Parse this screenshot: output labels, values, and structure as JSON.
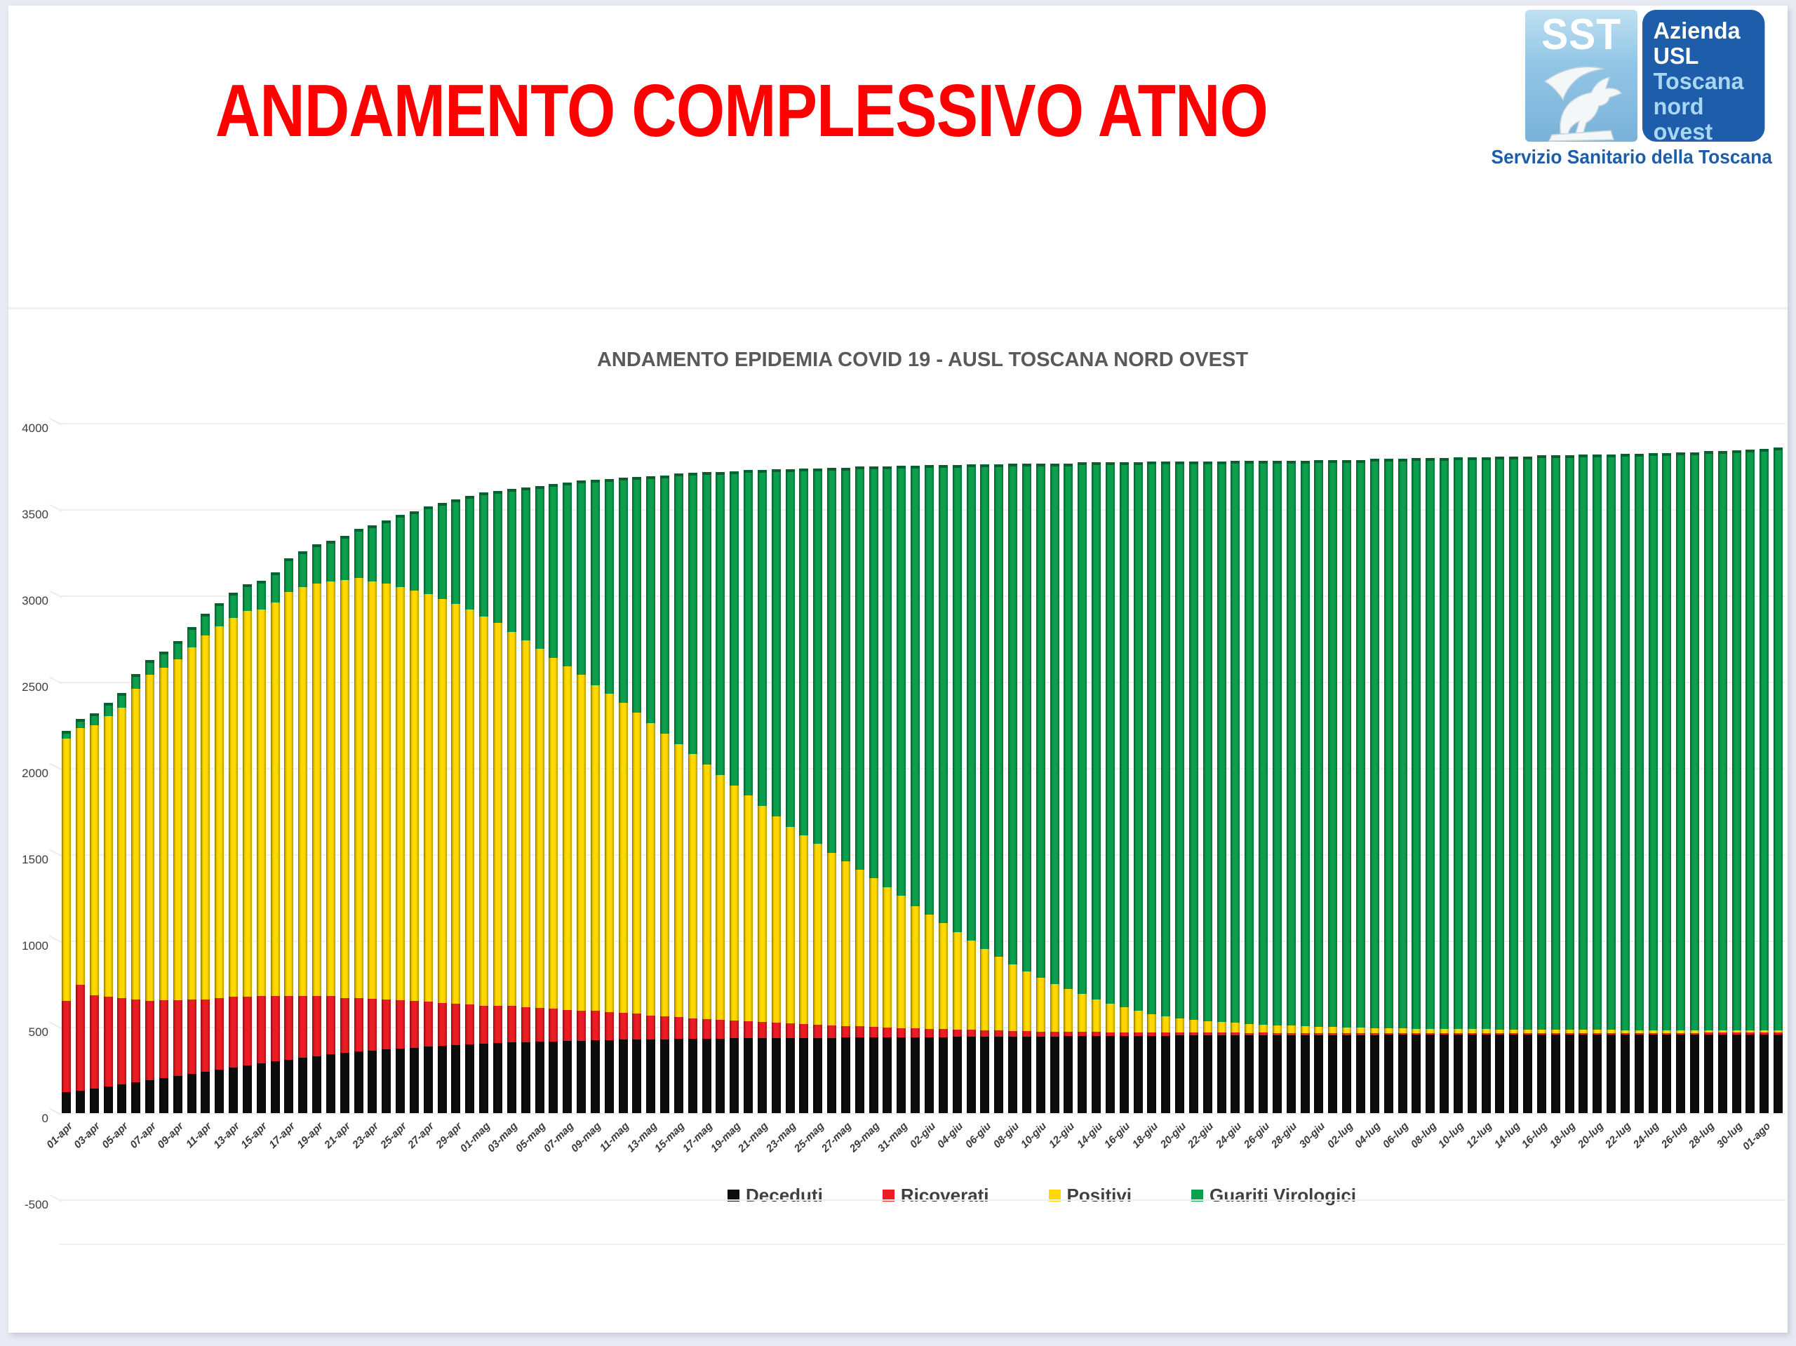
{
  "page": {
    "title": "ANDAMENTO COMPLESSIVO ATNO",
    "title_color": "#fe0000"
  },
  "logo": {
    "sst": "SST",
    "line1": "Azienda",
    "line2": "USL",
    "line3": "Toscana",
    "line4": "nord ovest",
    "caption": "Servizio Sanitario della Toscana",
    "dark_blue": "#1d5da9",
    "light_blue": "#a9d6f2"
  },
  "chart_data": {
    "type": "bar",
    "stacked": true,
    "title": "ANDAMENTO EPIDEMIA COVID 19 - AUSL TOSCANA NORD OVEST",
    "xlabel": "",
    "ylabel": "",
    "ylim": [
      -500,
      4000
    ],
    "yticks": [
      4000,
      3500,
      3000,
      2500,
      2000,
      1500,
      1000,
      500,
      0,
      -500
    ],
    "grid": true,
    "legend_position": "bottom",
    "x_label_every": 2,
    "x": [
      "01-apr",
      "02-apr",
      "03-apr",
      "04-apr",
      "05-apr",
      "06-apr",
      "07-apr",
      "08-apr",
      "09-apr",
      "10-apr",
      "11-apr",
      "12-apr",
      "13-apr",
      "14-apr",
      "15-apr",
      "16-apr",
      "17-apr",
      "18-apr",
      "19-apr",
      "20-apr",
      "21-apr",
      "22-apr",
      "23-apr",
      "24-apr",
      "25-apr",
      "26-apr",
      "27-apr",
      "28-apr",
      "29-apr",
      "30-apr",
      "01-mag",
      "02-mag",
      "03-mag",
      "04-mag",
      "05-mag",
      "06-mag",
      "07-mag",
      "08-mag",
      "09-mag",
      "10-mag",
      "11-mag",
      "12-mag",
      "13-mag",
      "14-mag",
      "15-mag",
      "16-mag",
      "17-mag",
      "18-mag",
      "19-mag",
      "20-mag",
      "21-mag",
      "22-mag",
      "23-mag",
      "24-mag",
      "25-mag",
      "26-mag",
      "27-mag",
      "28-mag",
      "29-mag",
      "30-mag",
      "31-mag",
      "01-giu",
      "02-giu",
      "03-giu",
      "04-giu",
      "05-giu",
      "06-giu",
      "07-giu",
      "08-giu",
      "09-giu",
      "10-giu",
      "11-giu",
      "12-giu",
      "13-giu",
      "14-giu",
      "15-giu",
      "16-giu",
      "17-giu",
      "18-giu",
      "19-giu",
      "20-giu",
      "21-giu",
      "22-giu",
      "23-giu",
      "24-giu",
      "25-giu",
      "26-giu",
      "27-giu",
      "28-giu",
      "29-giu",
      "30-giu",
      "01-lug",
      "02-lug",
      "03-lug",
      "04-lug",
      "05-lug",
      "06-lug",
      "07-lug",
      "08-lug",
      "09-lug",
      "10-lug",
      "11-lug",
      "12-lug",
      "13-lug",
      "14-lug",
      "15-lug",
      "16-lug",
      "17-lug",
      "18-lug",
      "19-lug",
      "20-lug",
      "21-lug",
      "22-lug",
      "23-lug",
      "24-lug",
      "25-lug",
      "26-lug",
      "27-lug",
      "28-lug",
      "29-lug",
      "30-lug",
      "31-lug",
      "01-ago",
      "02-ago"
    ],
    "series": [
      {
        "name": "Deceduti",
        "color": "#0d0d0d",
        "values": [
          120,
          132,
          144,
          156,
          168,
          180,
          192,
          204,
          216,
          228,
          240,
          252,
          264,
          276,
          288,
          300,
          310,
          320,
          330,
          340,
          348,
          356,
          362,
          368,
          374,
          380,
          386,
          390,
          395,
          400,
          404,
          407,
          410,
          412,
          414,
          416,
          418,
          420,
          422,
          424,
          425,
          426,
          427,
          428,
          429,
          430,
          431,
          432,
          433,
          434,
          435,
          435,
          436,
          436,
          437,
          437,
          438,
          438,
          439,
          439,
          439,
          440,
          441,
          441,
          442,
          442,
          443,
          443,
          444,
          444,
          445,
          445,
          446,
          446,
          447,
          447,
          448,
          448,
          449,
          449,
          450,
          450,
          450,
          451,
          451,
          451,
          452,
          452,
          452,
          452,
          452,
          453,
          453,
          453,
          453,
          454,
          454,
          454,
          454,
          454,
          455,
          455,
          455,
          455,
          455,
          455,
          455,
          456,
          456,
          456,
          456,
          456,
          456,
          456,
          456,
          456,
          456,
          456,
          456,
          456,
          456,
          456,
          456,
          456
        ]
      },
      {
        "name": "Ricoverati",
        "color": "#ec1c24",
        "values": [
          530,
          610,
          540,
          520,
          500,
          480,
          460,
          450,
          440,
          430,
          420,
          415,
          410,
          400,
          390,
          380,
          370,
          360,
          350,
          340,
          320,
          310,
          300,
          290,
          280,
          270,
          260,
          250,
          240,
          230,
          220,
          215,
          210,
          200,
          195,
          190,
          180,
          175,
          170,
          160,
          155,
          150,
          140,
          135,
          130,
          120,
          115,
          110,
          105,
          100,
          95,
          90,
          85,
          80,
          75,
          70,
          68,
          65,
          60,
          58,
          55,
          50,
          48,
          45,
          42,
          40,
          38,
          35,
          33,
          30,
          28,
          26,
          25,
          24,
          23,
          22,
          21,
          20,
          19,
          18,
          17,
          16,
          16,
          15,
          15,
          14,
          14,
          13,
          13,
          12,
          12,
          12,
          11,
          11,
          10,
          10,
          10,
          9,
          9,
          9,
          8,
          8,
          8,
          8,
          8,
          8,
          8,
          8,
          8,
          8,
          8,
          8,
          8,
          8,
          9,
          9,
          9,
          9,
          10,
          10,
          10,
          10,
          10,
          10
        ]
      },
      {
        "name": "Positivi",
        "color": "#ffd800",
        "values": [
          1520,
          1488,
          1566,
          1624,
          1682,
          1800,
          1888,
          1926,
          1974,
          2042,
          2110,
          2153,
          2196,
          2234,
          2242,
          2280,
          2340,
          2370,
          2390,
          2400,
          2422,
          2434,
          2418,
          2412,
          2396,
          2380,
          2364,
          2340,
          2315,
          2290,
          2256,
          2218,
          2170,
          2128,
          2081,
          2034,
          1992,
          1945,
          1888,
          1846,
          1800,
          1744,
          1693,
          1637,
          1581,
          1530,
          1474,
          1418,
          1362,
          1306,
          1250,
          1195,
          1139,
          1094,
          1048,
          1003,
          954,
          907,
          861,
          813,
          766,
          710,
          661,
          614,
          566,
          518,
          469,
          427,
          383,
          346,
          312,
          279,
          249,
          220,
          190,
          166,
          143,
          124,
          107,
          93,
          81,
          74,
          68,
          62,
          57,
          53,
          48,
          45,
          42,
          40,
          37,
          34,
          33,
          31,
          30,
          28,
          27,
          27,
          26,
          25,
          24,
          23,
          23,
          22,
          22,
          21,
          21,
          19,
          19,
          18,
          18,
          18,
          17,
          17,
          16,
          15,
          15,
          15,
          14,
          13,
          13,
          13,
          12,
          12
        ]
      },
      {
        "name": "Guariti Virologici",
        "color": "#0ca04e",
        "values": [
          30,
          40,
          50,
          60,
          70,
          70,
          70,
          80,
          90,
          100,
          110,
          120,
          130,
          140,
          150,
          160,
          180,
          190,
          210,
          220,
          240,
          270,
          310,
          350,
          400,
          440,
          490,
          540,
          590,
          640,
          700,
          750,
          810,
          870,
          930,
          990,
          1050,
          1110,
          1175,
          1230,
          1285,
          1350,
          1415,
          1480,
          1550,
          1615,
          1680,
          1740,
          1805,
          1870,
          1930,
          1995,
          2055,
          2110,
          2160,
          2215,
          2265,
          2320,
          2370,
          2420,
          2475,
          2535,
          2590,
          2640,
          2690,
          2745,
          2795,
          2840,
          2890,
          2930,
          2965,
          3000,
          3030,
          3065,
          3095,
          3120,
          3143,
          3163,
          3185,
          3200,
          3212,
          3220,
          3226,
          3232,
          3242,
          3247,
          3251,
          3255,
          3258,
          3261,
          3269,
          3271,
          3273,
          3275,
          3282,
          3283,
          3284,
          3290,
          3291,
          3292,
          3298,
          3299,
          3299,
          3305,
          3305,
          3306,
          3311,
          3312,
          3312,
          3318,
          3318,
          3318,
          3324,
          3324,
          3329,
          3330,
          3335,
          3335,
          3340,
          3341,
          3346,
          3351,
          3357,
          3362
        ]
      }
    ]
  }
}
